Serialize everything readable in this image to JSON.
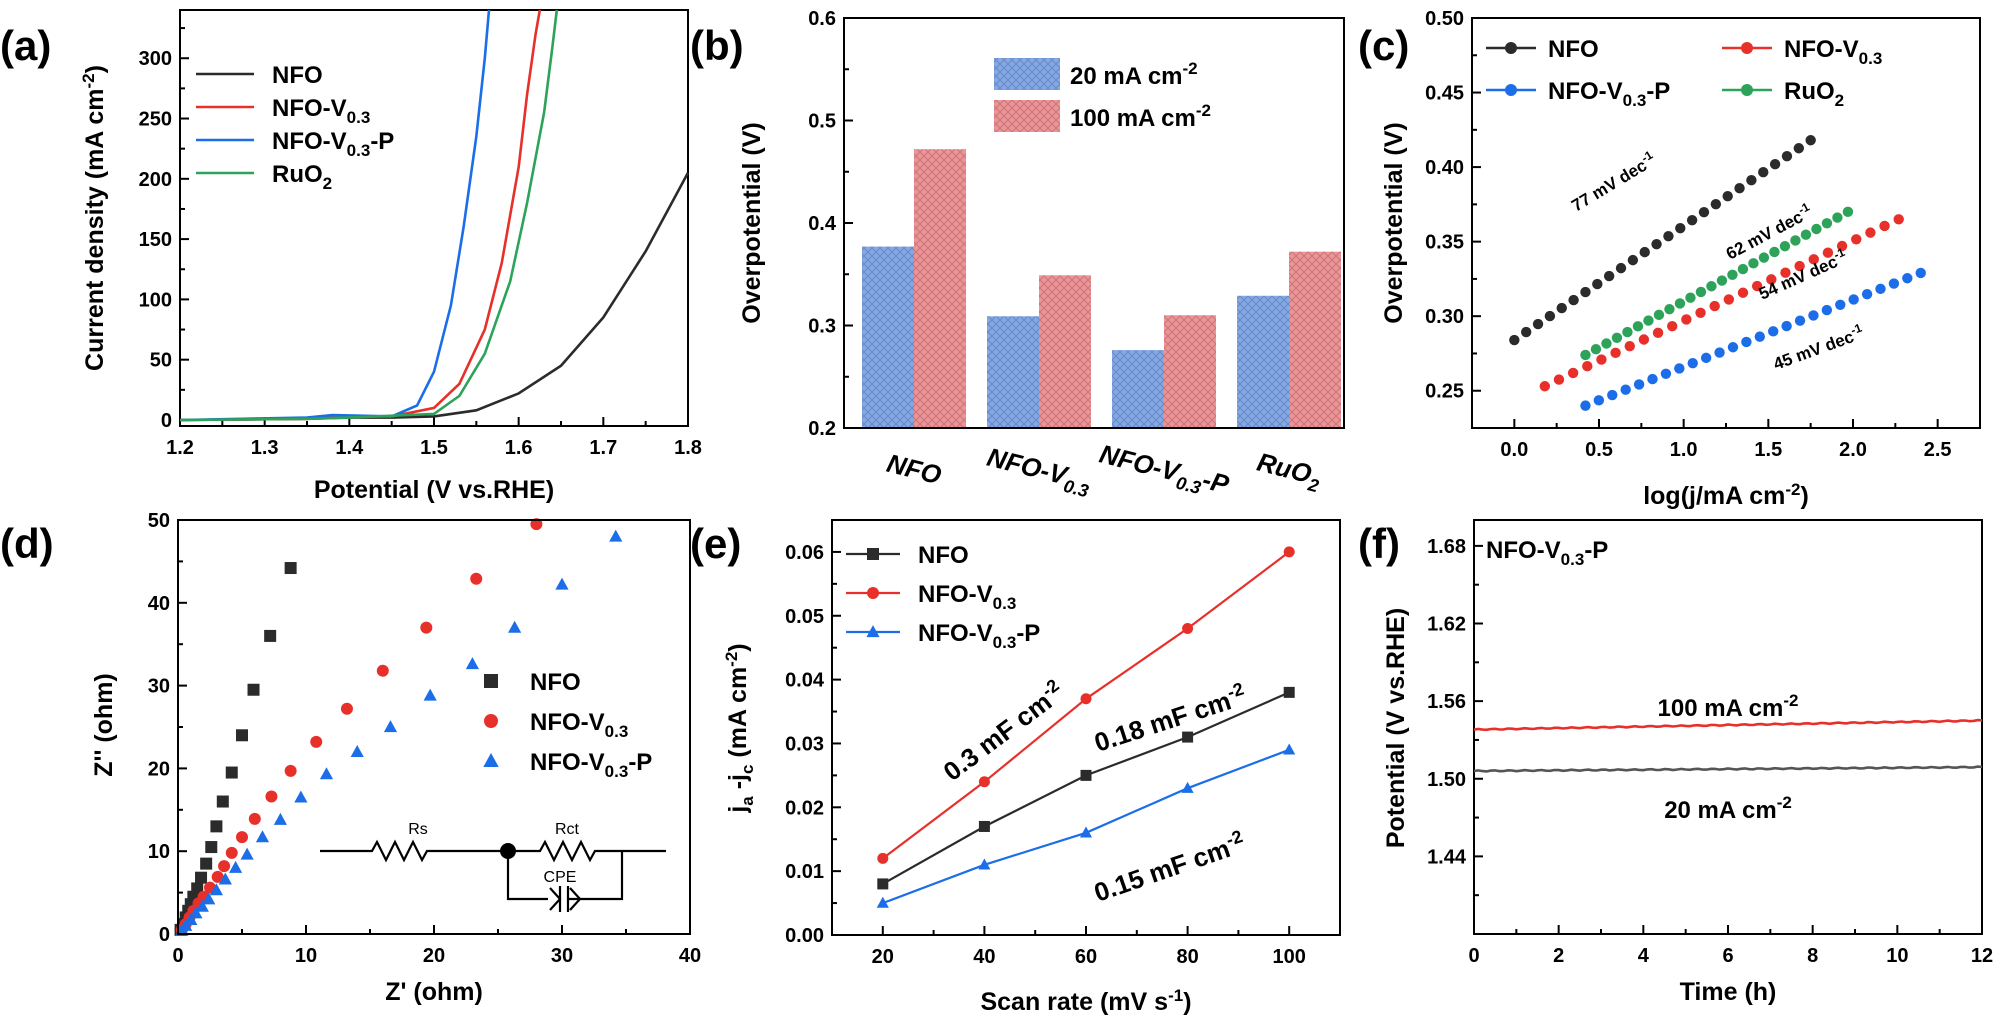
{
  "colors": {
    "black": "#2b2b2b",
    "red": "#e8302b",
    "blue": "#1b6ee8",
    "green": "#2da35a",
    "gray": "#555555",
    "bar_blue": "#82a8e8",
    "bar_red": "#ef9396"
  },
  "chart_data": [
    {
      "panel": "(a)",
      "type": "line",
      "xlabel": "Potential (V vs.RHE)",
      "ylabel_main": "Current density (mA cm",
      "ylabel_sup": "-2",
      "ylabel_end": ")",
      "xlim": [
        1.2,
        1.8
      ],
      "ylim": [
        -5,
        340
      ],
      "xticks": [
        "1.2",
        "1.3",
        "1.4",
        "1.5",
        "1.6",
        "1.7",
        "1.8"
      ],
      "yticks": [
        "0",
        "50",
        "100",
        "150",
        "200",
        "250",
        "300"
      ],
      "legend": [
        {
          "main": "NFO",
          "sub": "",
          "tail": ""
        },
        {
          "main": "NFO-V",
          "sub": "0.3",
          "tail": ""
        },
        {
          "main": "NFO-V",
          "sub": "0.3",
          "tail": "-P"
        },
        {
          "main": "RuO",
          "sub": "2",
          "tail": ""
        }
      ],
      "series": [
        {
          "name": "NFO",
          "color": "black",
          "x": [
            1.2,
            1.35,
            1.4,
            1.45,
            1.5,
            1.55,
            1.6,
            1.65,
            1.7,
            1.75,
            1.8
          ],
          "y": [
            0,
            1,
            2,
            2,
            3,
            8,
            22,
            45,
            85,
            140,
            205
          ]
        },
        {
          "name": "NFO-V0.3",
          "color": "red",
          "x": [
            1.2,
            1.35,
            1.38,
            1.45,
            1.5,
            1.53,
            1.56,
            1.58,
            1.6,
            1.61,
            1.62,
            1.625
          ],
          "y": [
            0,
            1,
            3,
            3,
            10,
            30,
            75,
            130,
            210,
            270,
            320,
            340
          ]
        },
        {
          "name": "NFO-V0.3-P",
          "color": "blue",
          "x": [
            1.2,
            1.35,
            1.38,
            1.45,
            1.48,
            1.5,
            1.52,
            1.535,
            1.55,
            1.56,
            1.565
          ],
          "y": [
            0,
            2,
            4,
            3,
            12,
            40,
            95,
            160,
            235,
            300,
            340
          ]
        },
        {
          "name": "RuO2",
          "color": "green",
          "x": [
            1.2,
            1.35,
            1.4,
            1.5,
            1.53,
            1.56,
            1.59,
            1.61,
            1.63,
            1.64,
            1.645
          ],
          "y": [
            0,
            1,
            2,
            5,
            20,
            55,
            115,
            180,
            255,
            310,
            340
          ]
        }
      ]
    },
    {
      "panel": "(b)",
      "type": "bar",
      "ylabel": "Overpotential (V)",
      "ylim": [
        0.2,
        0.6
      ],
      "yticks": [
        "0.2",
        "0.3",
        "0.4",
        "0.5",
        "0.6"
      ],
      "categories": [
        {
          "main": "NFO",
          "sub": "",
          "tail": ""
        },
        {
          "main": "NFO-V",
          "sub": "0.3",
          "tail": ""
        },
        {
          "main": "NFO-V",
          "sub": "0.3",
          "tail": "-P"
        },
        {
          "main": "RuO",
          "sub": "2",
          "tail": ""
        }
      ],
      "series": [
        {
          "label": "20 mA cm",
          "sup": "-2",
          "color": "bar_blue",
          "values": [
            0.377,
            0.309,
            0.276,
            0.329
          ]
        },
        {
          "label": "100 mA cm",
          "sup": "-2",
          "color": "bar_red",
          "values": [
            0.472,
            0.349,
            0.31,
            0.372
          ]
        }
      ]
    },
    {
      "panel": "(c)",
      "type": "scatter",
      "xlabel_main": "log(j/mA cm",
      "xlabel_sup": "-2",
      "xlabel_end": ")",
      "ylabel": "Overpotential (V)",
      "xlim": [
        -0.25,
        2.75
      ],
      "ylim": [
        0.225,
        0.5
      ],
      "xticks": [
        "0.0",
        "0.5",
        "1.0",
        "1.5",
        "2.0",
        "2.5"
      ],
      "yticks": [
        "0.25",
        "0.30",
        "0.35",
        "0.40",
        "0.45",
        "0.50"
      ],
      "legend": [
        {
          "main": "NFO",
          "sub": "",
          "tail": "",
          "color": "black"
        },
        {
          "main": "NFO-V",
          "sub": "0.3",
          "tail": "",
          "color": "red"
        },
        {
          "main": "NFO-V",
          "sub": "0.3",
          "tail": "-P",
          "color": "blue"
        },
        {
          "main": "RuO",
          "sub": "2",
          "tail": "",
          "color": "green"
        }
      ],
      "series": [
        {
          "name": "NFO",
          "color": "black",
          "x0": 0.0,
          "x1": 1.75,
          "y0": 0.284,
          "y1": 0.418,
          "slope_text": "77 mV dec",
          "sup": "-1"
        },
        {
          "name": "RuO2",
          "color": "green",
          "x0": 0.42,
          "x1": 1.97,
          "y0": 0.274,
          "y1": 0.37,
          "slope_text": "62 mV dec",
          "sup": "-1"
        },
        {
          "name": "NFO-V0.3",
          "color": "red",
          "x0": 0.18,
          "x1": 2.27,
          "y0": 0.253,
          "y1": 0.365,
          "slope_text": "54 mV dec",
          "sup": "-1"
        },
        {
          "name": "NFO-V0.3-P",
          "color": "blue",
          "x0": 0.42,
          "x1": 2.4,
          "y0": 0.24,
          "y1": 0.329,
          "slope_text": "45 mV dec",
          "sup": "-1"
        }
      ]
    },
    {
      "panel": "(d)",
      "type": "scatter",
      "xlabel": "Z' (ohm)",
      "ylabel": "Z'' (ohm)",
      "xlim": [
        0,
        40
      ],
      "ylim": [
        0,
        50
      ],
      "xticks": [
        "0",
        "10",
        "20",
        "30",
        "40"
      ],
      "yticks": [
        "0",
        "10",
        "20",
        "30",
        "40",
        "50"
      ],
      "legend": [
        {
          "main": "NFO",
          "sub": "",
          "tail": "",
          "color": "black",
          "marker": "square"
        },
        {
          "main": "NFO-V",
          "sub": "0.3",
          "tail": "",
          "color": "red",
          "marker": "circle"
        },
        {
          "main": "NFO-V",
          "sub": "0.3",
          "tail": "-P",
          "color": "blue",
          "marker": "triangle"
        }
      ],
      "circuit": {
        "rs": "Rs",
        "rct": "Rct",
        "cpe": "CPE"
      },
      "series": [
        {
          "name": "NFO",
          "color": "black",
          "marker": "square",
          "x": [
            0.2,
            0.4,
            0.6,
            0.8,
            1.0,
            1.2,
            1.5,
            1.8,
            2.2,
            2.6,
            3.0,
            3.5,
            4.2,
            5.0,
            5.9,
            7.2,
            8.8
          ],
          "y": [
            0.5,
            1.2,
            2.0,
            2.8,
            3.6,
            4.5,
            5.5,
            6.8,
            8.5,
            10.5,
            13,
            16,
            19.5,
            24,
            29.5,
            36,
            44.2
          ]
        },
        {
          "name": "NFO-V0.3",
          "color": "red",
          "marker": "circle",
          "x": [
            0.3,
            0.6,
            0.9,
            1.2,
            1.6,
            2.0,
            2.5,
            3.1,
            3.6,
            4.2,
            5.0,
            6.0,
            7.3,
            8.8,
            10.8,
            13.2,
            16.0,
            19.4,
            23.3,
            28.0
          ],
          "y": [
            0.5,
            1.2,
            2.0,
            2.8,
            3.7,
            4.5,
            5.6,
            6.9,
            8.2,
            9.8,
            11.7,
            13.9,
            16.6,
            19.7,
            23.2,
            27.2,
            31.8,
            37.0,
            42.9,
            49.5
          ]
        },
        {
          "name": "NFO-V0.3-P",
          "color": "blue",
          "marker": "triangle",
          "x": [
            0.3,
            0.6,
            1.0,
            1.4,
            1.9,
            2.4,
            3.0,
            3.7,
            4.5,
            5.4,
            6.6,
            8.0,
            9.6,
            11.6,
            14.0,
            16.6,
            19.7,
            23.0,
            26.3,
            30.0,
            34.2
          ],
          "y": [
            0.4,
            1.0,
            1.7,
            2.5,
            3.3,
            4.2,
            5.3,
            6.6,
            8.0,
            9.6,
            11.7,
            13.8,
            16.5,
            19.3,
            22.0,
            25.0,
            28.8,
            32.6,
            37.0,
            42.2,
            48.0
          ]
        }
      ]
    },
    {
      "panel": "(e)",
      "type": "line",
      "xlabel_main": "Scan rate (mV s",
      "xlabel_sup": "-1",
      "xlabel_end": ")",
      "ylabel": "ja -jc (mA cm-2)",
      "xlim": [
        10,
        110
      ],
      "ylim": [
        0,
        0.065
      ],
      "xticks": [
        "20",
        "40",
        "60",
        "80",
        "100"
      ],
      "yticks": [
        "0.00",
        "0.01",
        "0.02",
        "0.03",
        "0.04",
        "0.05",
        "0.06"
      ],
      "legend": [
        {
          "main": "NFO",
          "sub": "",
          "tail": "",
          "color": "black",
          "marker": "square"
        },
        {
          "main": "NFO-V",
          "sub": "0.3",
          "tail": "",
          "color": "red",
          "marker": "circle"
        },
        {
          "main": "NFO-V",
          "sub": "0.3",
          "tail": "-P",
          "color": "blue",
          "marker": "triangle"
        }
      ],
      "x": [
        20,
        40,
        60,
        80,
        100
      ],
      "series": [
        {
          "name": "NFO",
          "color": "black",
          "marker": "square",
          "values": [
            0.008,
            0.017,
            0.025,
            0.031,
            0.038
          ],
          "ann": "0.18 mF cm",
          "sup": "-2"
        },
        {
          "name": "NFO-V0.3",
          "color": "red",
          "marker": "circle",
          "values": [
            0.012,
            0.024,
            0.037,
            0.048,
            0.06
          ],
          "ann": "0.3 mF cm",
          "sup": "-2"
        },
        {
          "name": "NFO-V0.3-P",
          "color": "blue",
          "marker": "triangle",
          "values": [
            0.005,
            0.011,
            0.016,
            0.023,
            0.029
          ],
          "ann": "0.15 mF cm",
          "sup": "-2"
        }
      ]
    },
    {
      "panel": "(f)",
      "type": "line",
      "title_main": "NFO-V",
      "title_sub": "0.3",
      "title_tail": "-P",
      "xlabel": "Time (h)",
      "ylabel": "Potential (V vs.RHE)",
      "xlim": [
        0,
        12
      ],
      "ylim": [
        1.38,
        1.7
      ],
      "xticks": [
        "0",
        "2",
        "4",
        "6",
        "8",
        "10",
        "12"
      ],
      "yticks": [
        "1.44",
        "1.50",
        "1.56",
        "1.62",
        "1.68"
      ],
      "series": [
        {
          "name": "100 mA cm-2",
          "color": "red",
          "ann": "100 mA cm",
          "sup": "-2",
          "start": 1.538,
          "end": 1.545
        },
        {
          "name": "20 mA cm-2",
          "color": "gray",
          "ann": "20 mA cm",
          "sup": "-2",
          "start": 1.506,
          "end": 1.509
        }
      ]
    }
  ]
}
